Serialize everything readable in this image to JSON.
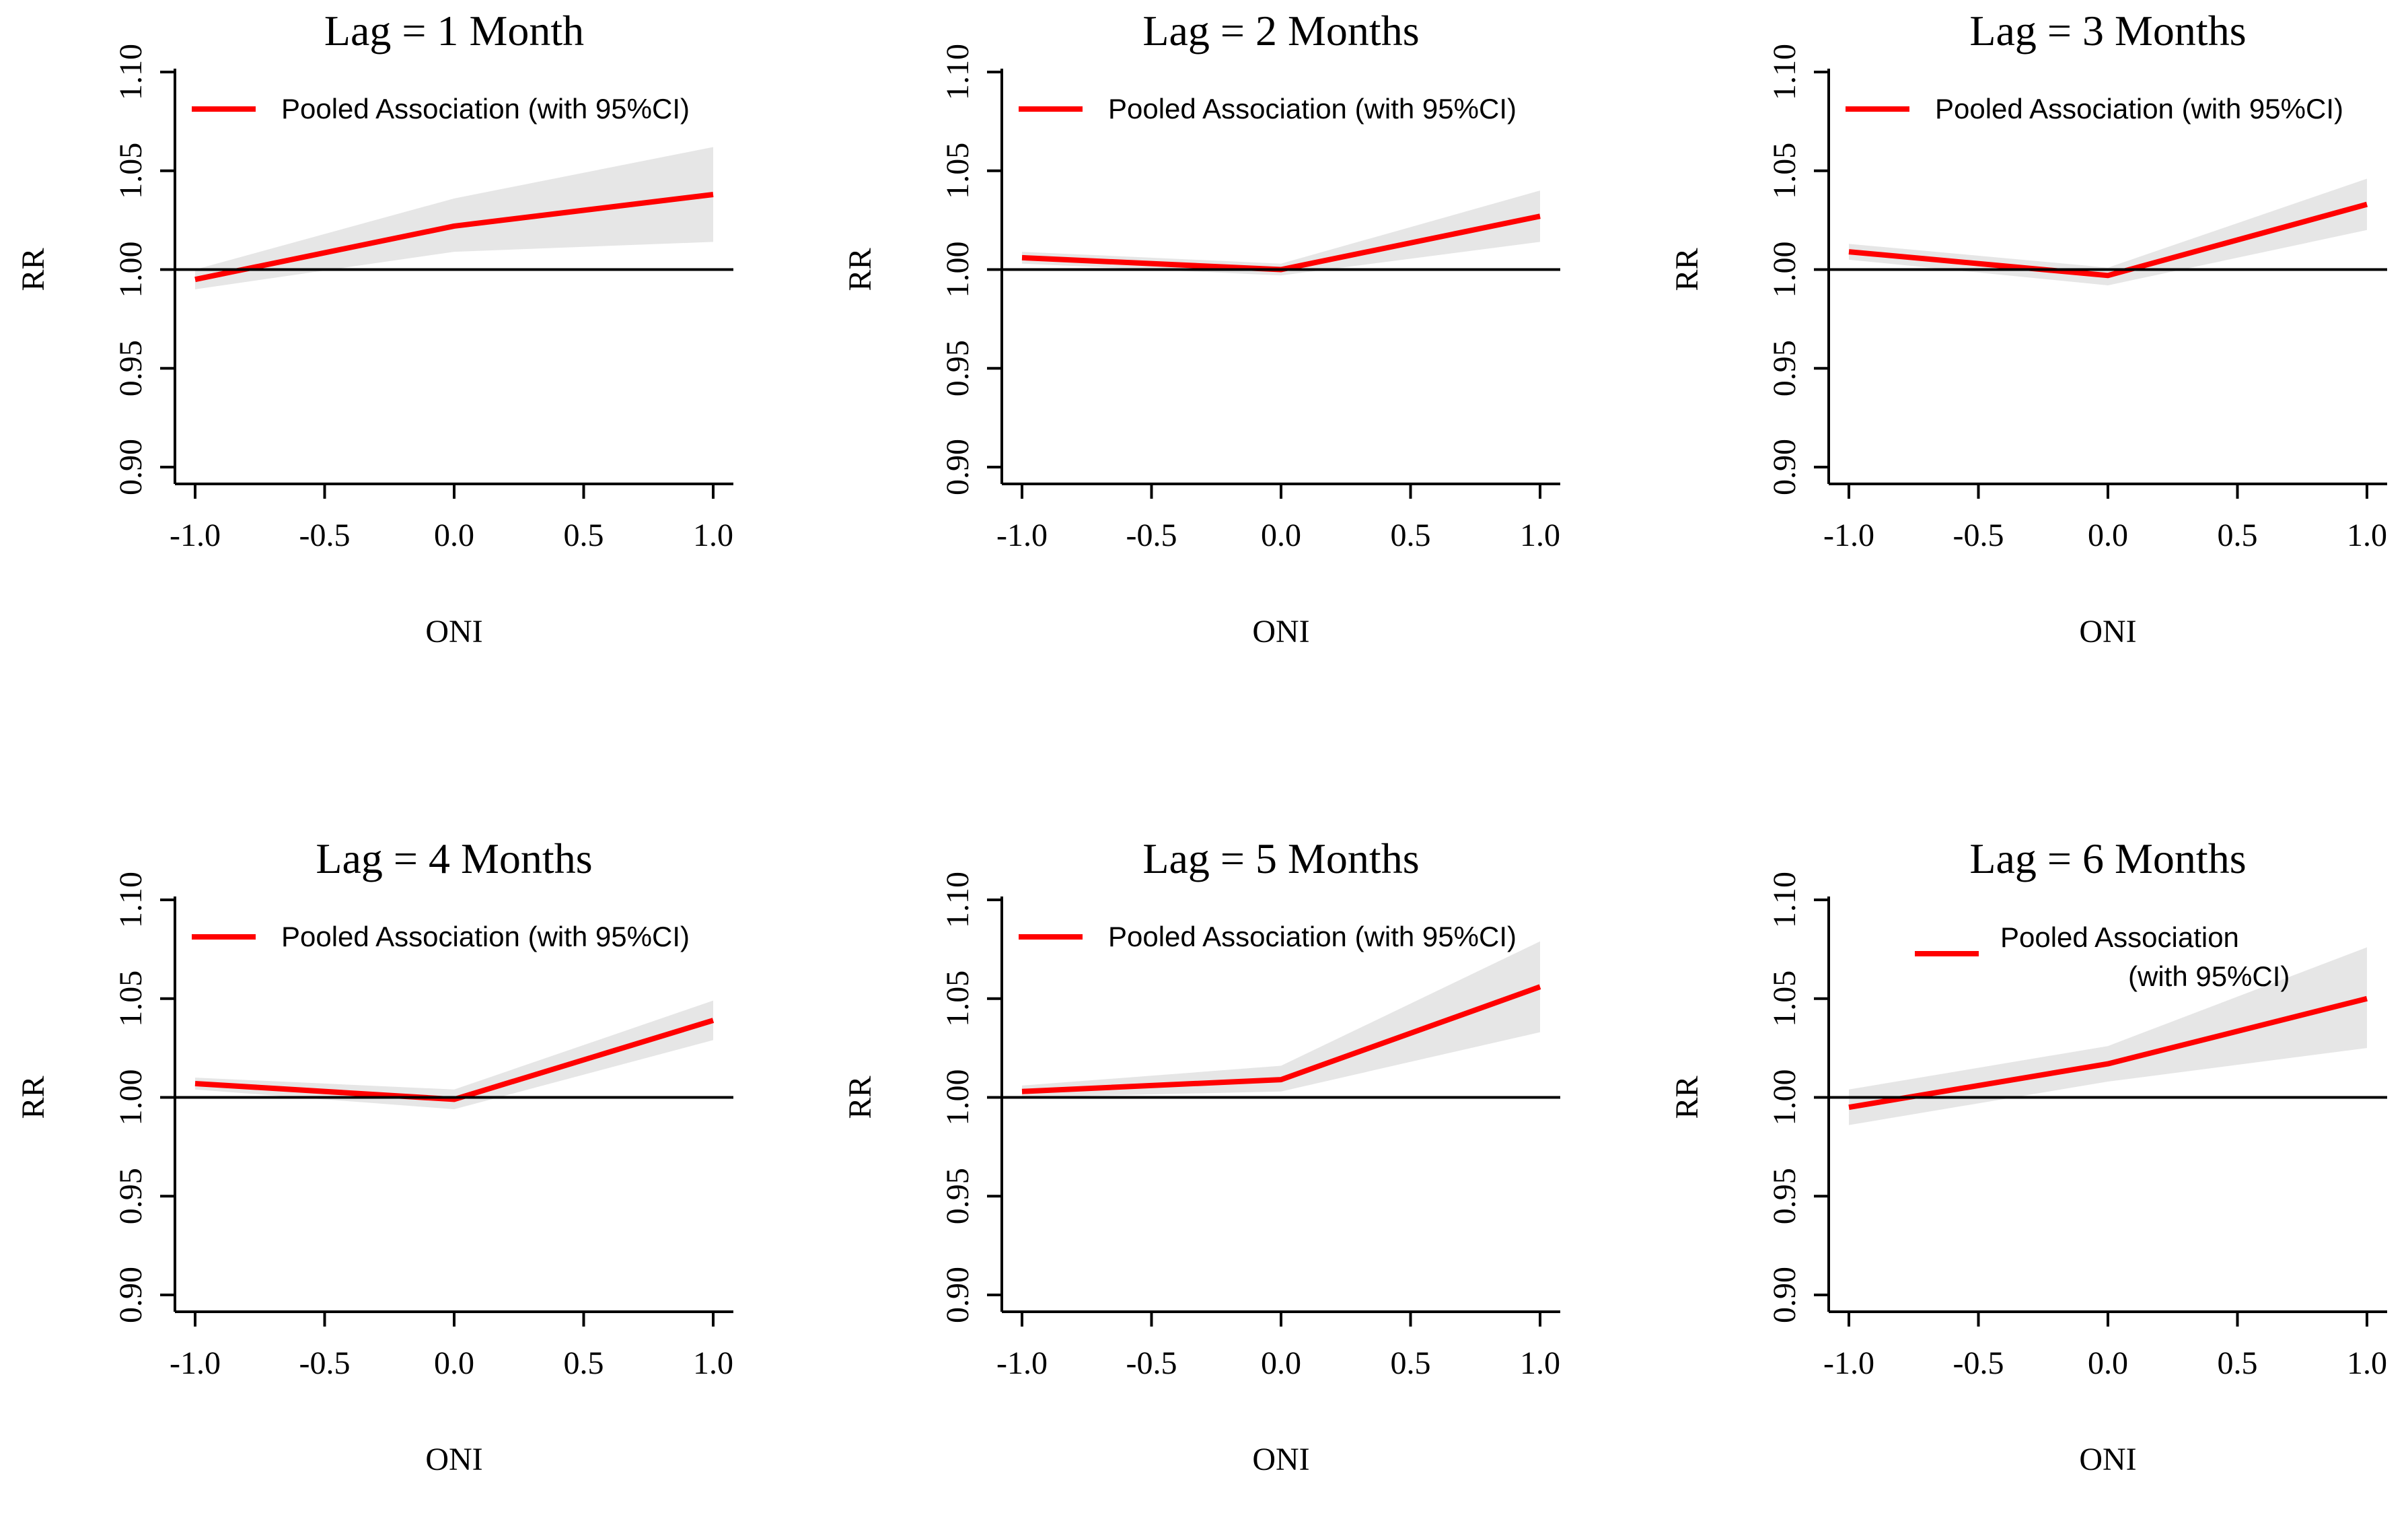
{
  "chart_data": [
    {
      "type": "line",
      "title": "Lag =  1 Month",
      "xlabel": "ONI",
      "ylabel": "RR",
      "xlim": [
        -1.0,
        1.0
      ],
      "ylim": [
        0.9,
        1.1
      ],
      "x_ticks": [
        "-1.0",
        "-0.5",
        "0.0",
        "0.5",
        "1.0"
      ],
      "y_ticks": [
        "0.90",
        "0.95",
        "1.00",
        "1.05",
        "1.10"
      ],
      "reference_line": 1.0,
      "legend": [
        "Pooled Association (with 95%CI)"
      ],
      "legend_position": "top-left",
      "series": [
        {
          "name": "Pooled Association",
          "color": "#ff0000",
          "x": [
            -1.0,
            0.0,
            1.0
          ],
          "y": [
            0.995,
            1.022,
            1.038
          ],
          "lower": [
            0.99,
            1.009,
            1.014
          ],
          "upper": [
            1.0,
            1.036,
            1.062
          ]
        }
      ]
    },
    {
      "type": "line",
      "title": "Lag =  2 Months",
      "xlabel": "ONI",
      "ylabel": "RR",
      "xlim": [
        -1.0,
        1.0
      ],
      "ylim": [
        0.9,
        1.1
      ],
      "x_ticks": [
        "-1.0",
        "-0.5",
        "0.0",
        "0.5",
        "1.0"
      ],
      "y_ticks": [
        "0.90",
        "0.95",
        "1.00",
        "1.05",
        "1.10"
      ],
      "reference_line": 1.0,
      "legend": [
        "Pooled Association (with 95%CI)"
      ],
      "legend_position": "top-left",
      "series": [
        {
          "name": "Pooled Association",
          "color": "#ff0000",
          "x": [
            -1.0,
            0.0,
            1.0
          ],
          "y": [
            1.006,
            1.0,
            1.027
          ],
          "lower": [
            1.003,
            0.997,
            1.014
          ],
          "upper": [
            1.009,
            1.003,
            1.04
          ]
        }
      ]
    },
    {
      "type": "line",
      "title": "Lag =  3 Months",
      "xlabel": "ONI",
      "ylabel": "RR",
      "xlim": [
        -1.0,
        1.0
      ],
      "ylim": [
        0.9,
        1.1
      ],
      "x_ticks": [
        "-1.0",
        "-0.5",
        "0.0",
        "0.5",
        "1.0"
      ],
      "y_ticks": [
        "0.90",
        "0.95",
        "1.00",
        "1.05",
        "1.10"
      ],
      "reference_line": 1.0,
      "legend": [
        "Pooled Association (with 95%CI)"
      ],
      "legend_position": "top-left",
      "series": [
        {
          "name": "Pooled Association",
          "color": "#ff0000",
          "x": [
            -1.0,
            0.0,
            1.0
          ],
          "y": [
            1.009,
            0.997,
            1.033
          ],
          "lower": [
            1.005,
            0.992,
            1.02
          ],
          "upper": [
            1.013,
            1.001,
            1.046
          ]
        }
      ]
    },
    {
      "type": "line",
      "title": "Lag =  4 Months",
      "xlabel": "ONI",
      "ylabel": "RR",
      "xlim": [
        -1.0,
        1.0
      ],
      "ylim": [
        0.9,
        1.1
      ],
      "x_ticks": [
        "-1.0",
        "-0.5",
        "0.0",
        "0.5",
        "1.0"
      ],
      "y_ticks": [
        "0.90",
        "0.95",
        "1.00",
        "1.05",
        "1.10"
      ],
      "reference_line": 1.0,
      "legend": [
        "Pooled Association (with 95%CI)"
      ],
      "legend_position": "top-left",
      "series": [
        {
          "name": "Pooled Association",
          "color": "#ff0000",
          "x": [
            -1.0,
            0.0,
            1.0
          ],
          "y": [
            1.007,
            0.999,
            1.039
          ],
          "lower": [
            1.004,
            0.994,
            1.029
          ],
          "upper": [
            1.01,
            1.004,
            1.049
          ]
        }
      ]
    },
    {
      "type": "line",
      "title": "Lag =  5 Months",
      "xlabel": "ONI",
      "ylabel": "RR",
      "xlim": [
        -1.0,
        1.0
      ],
      "ylim": [
        0.9,
        1.1
      ],
      "x_ticks": [
        "-1.0",
        "-0.5",
        "0.0",
        "0.5",
        "1.0"
      ],
      "y_ticks": [
        "0.90",
        "0.95",
        "1.00",
        "1.05",
        "1.10"
      ],
      "reference_line": 1.0,
      "legend": [
        "Pooled Association (with 95%CI)"
      ],
      "legend_position": "top-left",
      "series": [
        {
          "name": "Pooled Association",
          "color": "#ff0000",
          "x": [
            -1.0,
            0.0,
            1.0
          ],
          "y": [
            1.003,
            1.009,
            1.056
          ],
          "lower": [
            1.0,
            1.003,
            1.033
          ],
          "upper": [
            1.006,
            1.016,
            1.079
          ]
        }
      ]
    },
    {
      "type": "line",
      "title": "Lag =  6 Months",
      "xlabel": "ONI",
      "ylabel": "RR",
      "xlim": [
        -1.0,
        1.0
      ],
      "ylim": [
        0.9,
        1.1
      ],
      "x_ticks": [
        "-1.0",
        "-0.5",
        "0.0",
        "0.5",
        "1.0"
      ],
      "y_ticks": [
        "0.90",
        "0.95",
        "1.00",
        "1.05",
        "1.10"
      ],
      "reference_line": 1.0,
      "legend": [
        "Pooled Association",
        "(with 95%CI)"
      ],
      "legend_position": "top-center",
      "series": [
        {
          "name": "Pooled Association",
          "color": "#ff0000",
          "x": [
            -1.0,
            0.0,
            1.0
          ],
          "y": [
            0.995,
            1.017,
            1.05
          ],
          "lower": [
            0.986,
            1.008,
            1.025
          ],
          "upper": [
            1.004,
            1.026,
            1.076
          ]
        }
      ]
    }
  ],
  "colors": {
    "ci_band": "#e6e6e6",
    "line": "#ff0000",
    "axis": "#000000"
  }
}
